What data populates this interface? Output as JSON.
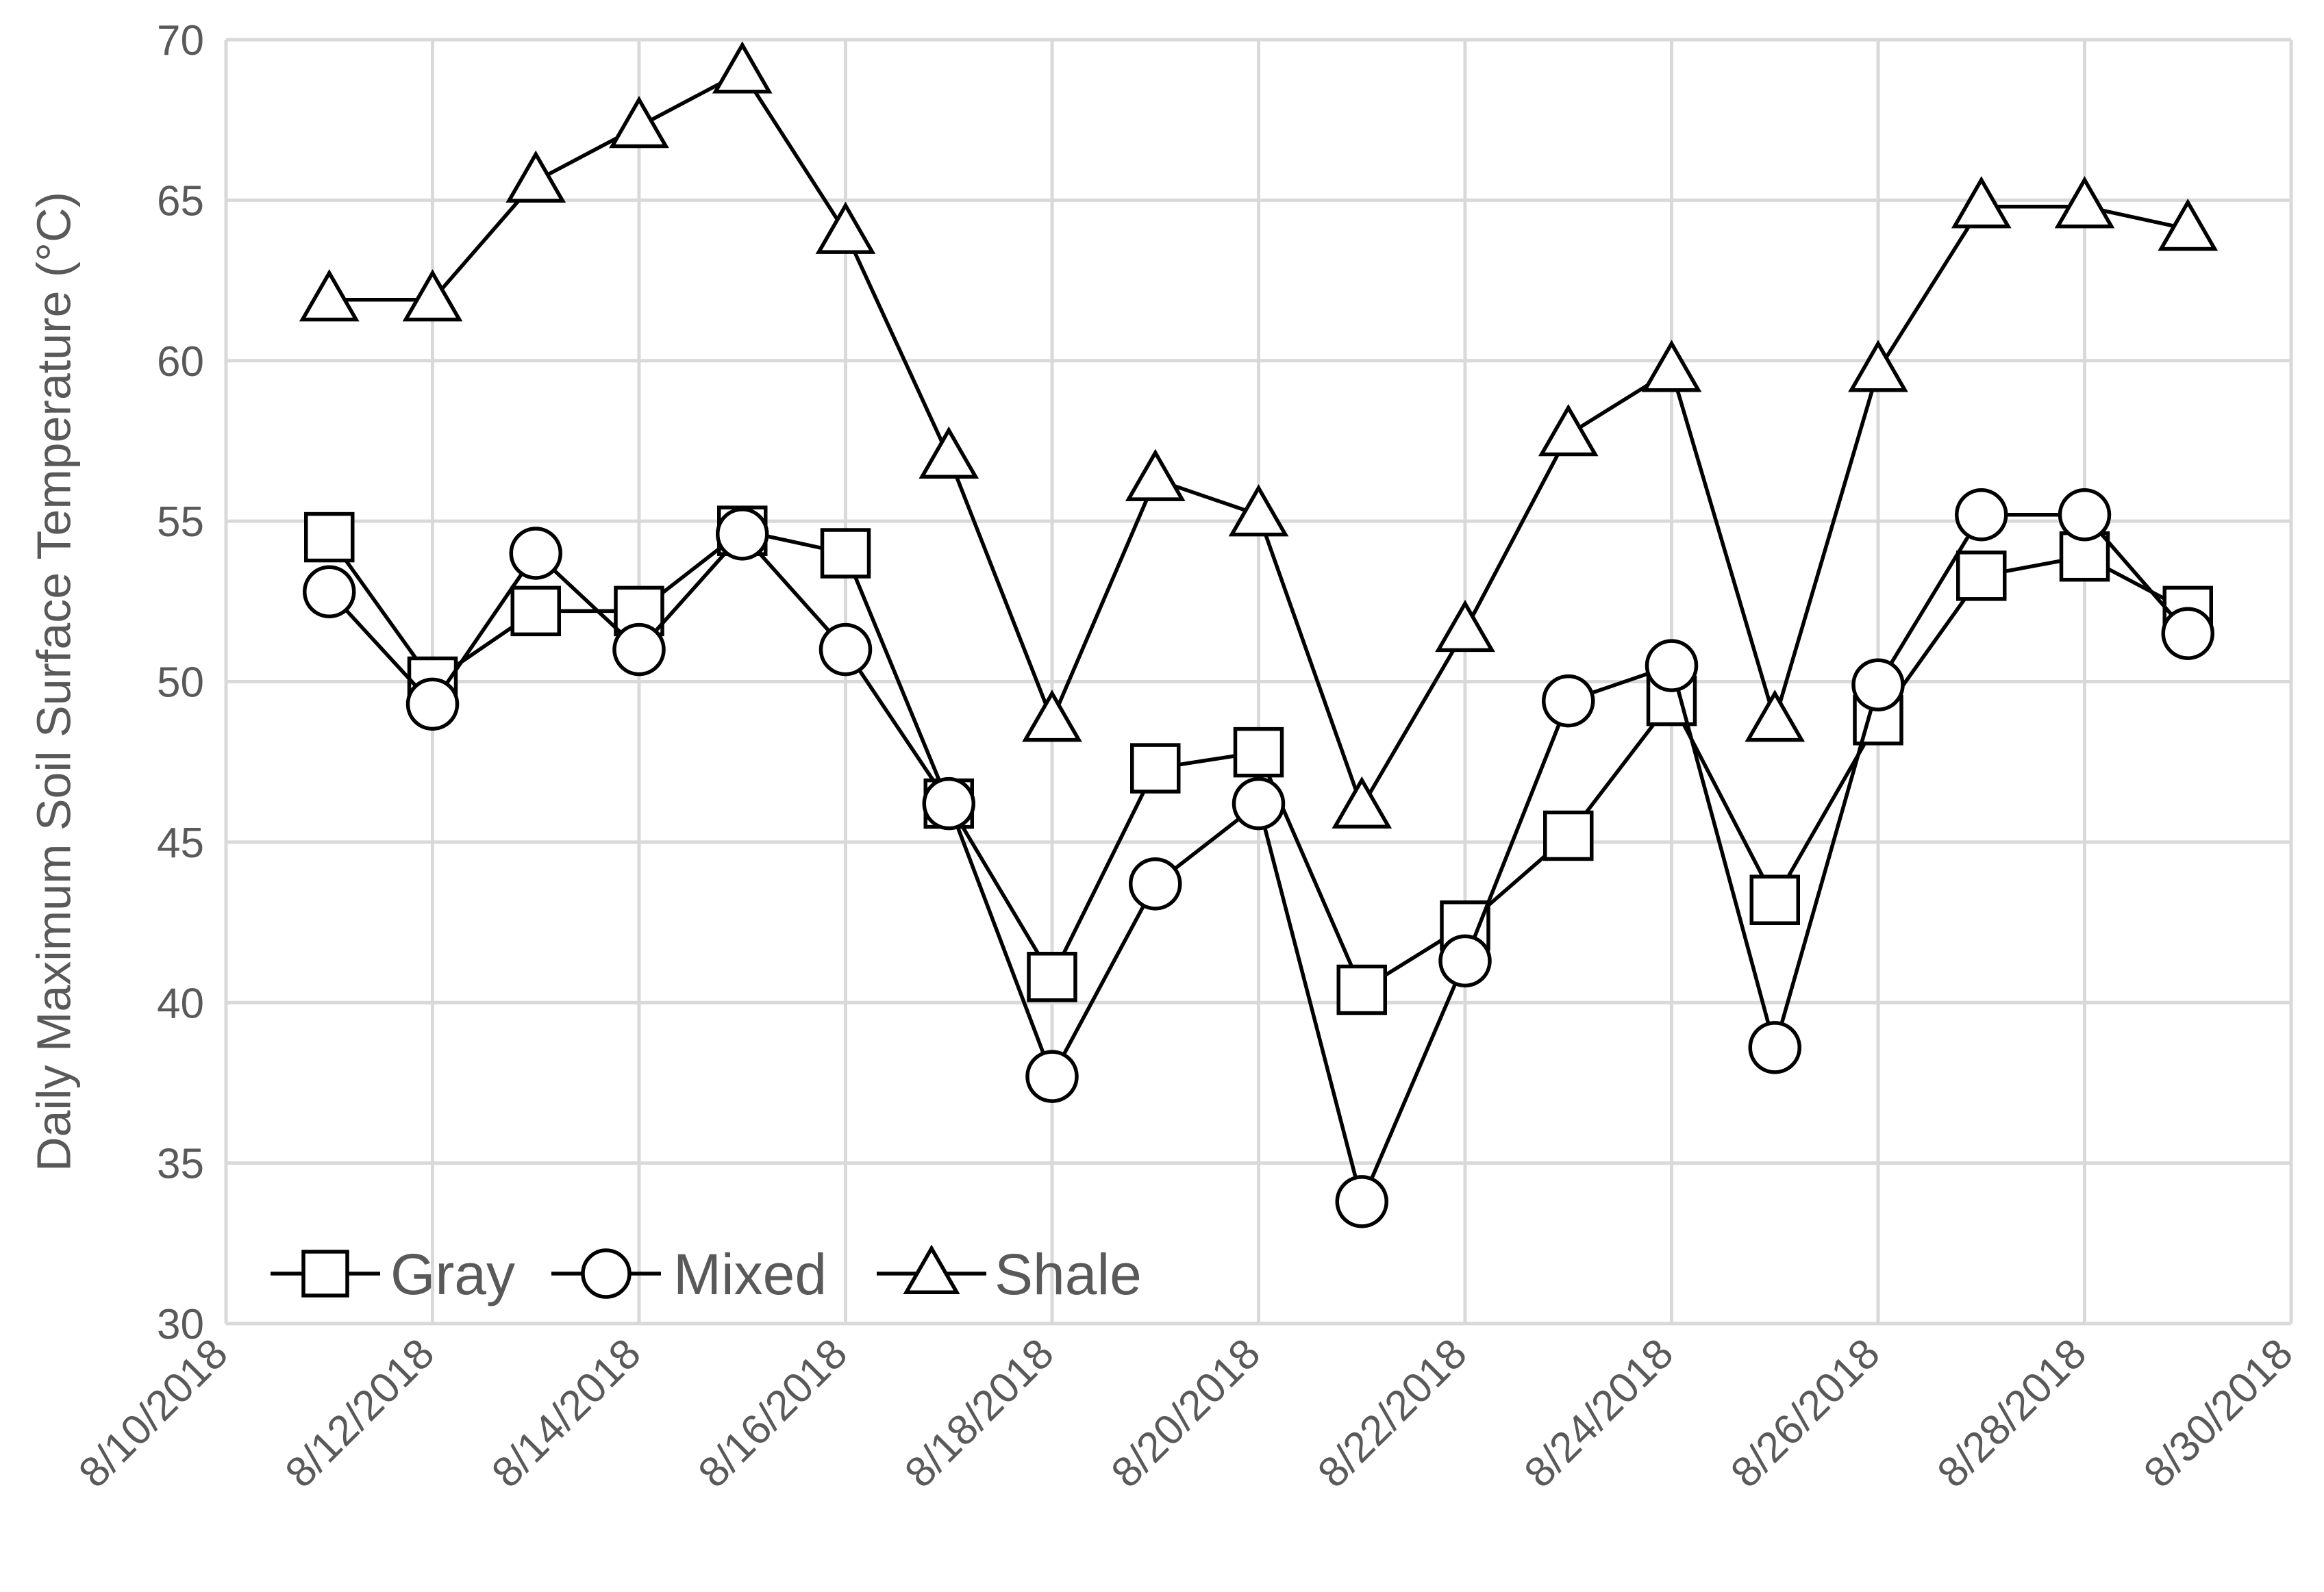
{
  "chart_data": {
    "type": "line",
    "title": "",
    "xlabel": "",
    "ylabel": "Daily Maximum Soil Surface Temperature (°C)",
    "ylim": [
      30,
      70
    ],
    "y_ticks": [
      "30",
      "35",
      "40",
      "45",
      "50",
      "55",
      "60",
      "65",
      "70"
    ],
    "xlim": [
      "8/10/2018",
      "8/30/2018"
    ],
    "x_ticks": [
      "8/10/2018",
      "8/12/2018",
      "8/14/2018",
      "8/16/2018",
      "8/18/2018",
      "8/20/2018",
      "8/22/2018",
      "8/24/2018",
      "8/26/2018",
      "8/28/2018",
      "8/30/2018"
    ],
    "x": [
      "8/11/2018",
      "8/12/2018",
      "8/13/2018",
      "8/14/2018",
      "8/15/2018",
      "8/16/2018",
      "8/17/2018",
      "8/18/2018",
      "8/19/2018",
      "8/20/2018",
      "8/21/2018",
      "8/22/2018",
      "8/23/2018",
      "8/24/2018",
      "8/25/2018",
      "8/26/2018",
      "8/27/2018",
      "8/28/2018",
      "8/29/2018"
    ],
    "grid": true,
    "legend_position": "bottom-left",
    "series": [
      {
        "name": "Gray",
        "marker": "square",
        "values": [
          54.5,
          50.0,
          52.2,
          52.2,
          54.7,
          54.0,
          46.2,
          40.8,
          47.3,
          47.8,
          40.4,
          42.4,
          45.2,
          49.4,
          43.2,
          48.8,
          53.3,
          53.9,
          52.2
        ]
      },
      {
        "name": "Mixed",
        "marker": "circle",
        "values": [
          52.8,
          49.3,
          54.0,
          51.0,
          54.6,
          51.0,
          46.2,
          37.7,
          43.7,
          46.2,
          33.8,
          41.3,
          49.4,
          50.5,
          38.6,
          49.9,
          55.2,
          55.2,
          51.5
        ]
      },
      {
        "name": "Shale",
        "marker": "triangle",
        "values": [
          61.9,
          61.9,
          65.6,
          67.3,
          69.0,
          64.0,
          57.0,
          48.8,
          56.3,
          55.2,
          46.1,
          51.6,
          57.7,
          59.7,
          48.8,
          59.7,
          64.8,
          64.8,
          64.1
        ]
      }
    ]
  }
}
